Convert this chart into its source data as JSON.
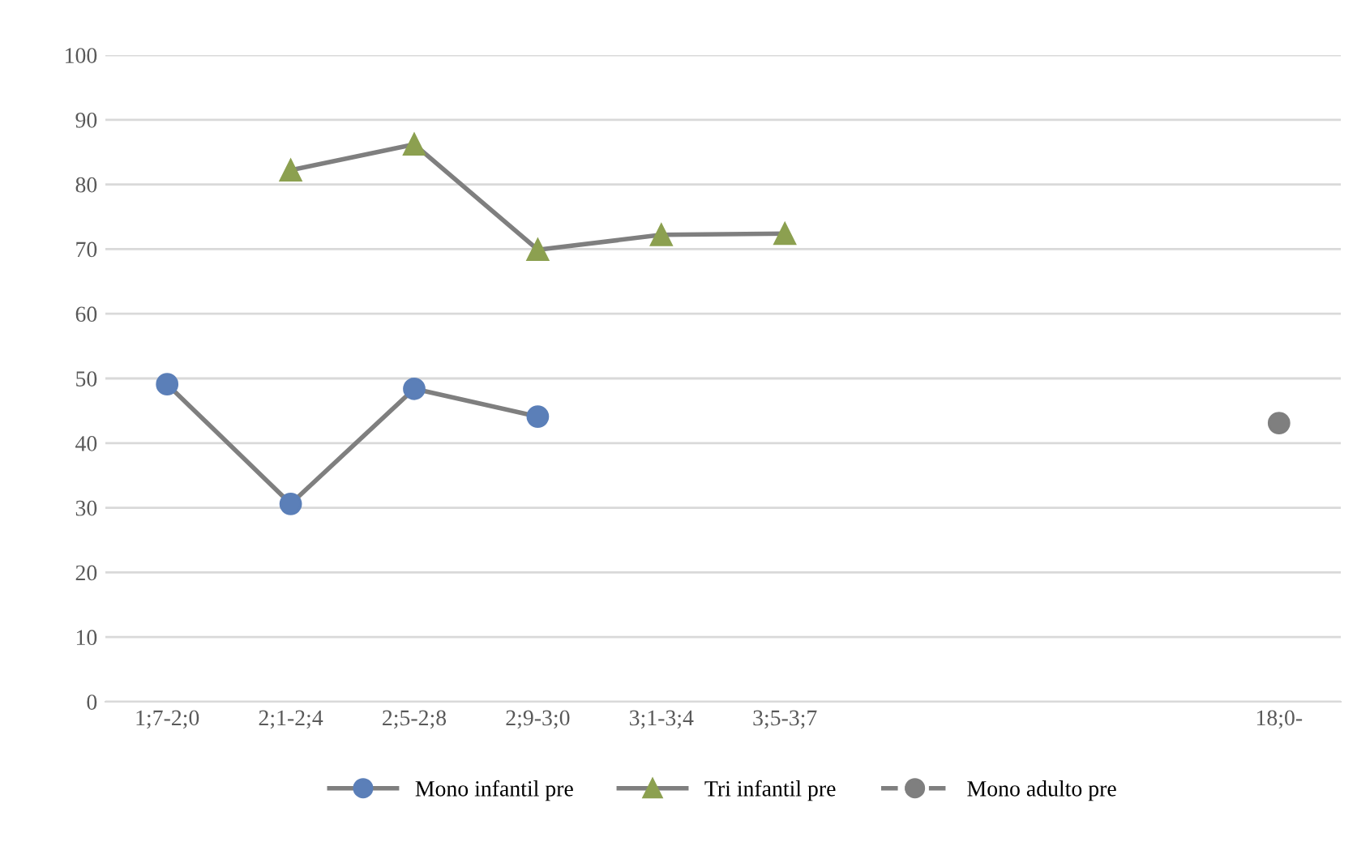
{
  "chart_data": {
    "type": "line",
    "categories": [
      "1;7-2;0",
      "2;1-2;4",
      "2;5-2;8",
      "2;9-3;0",
      "3;1-3;4",
      "3;5-3;7",
      null,
      null,
      null,
      "18;0-"
    ],
    "series": [
      {
        "name": "Mono infantil pre",
        "color": "#5b7fb8",
        "marker": "circle",
        "line_style": "solid",
        "values": [
          49.1,
          30.6,
          48.4,
          44.1,
          null,
          null,
          null,
          null,
          null,
          null
        ]
      },
      {
        "name": "Tri infantil pre",
        "color": "#8ca050",
        "marker": "triangle",
        "line_style": "solid",
        "values": [
          null,
          82.2,
          86.2,
          69.9,
          72.2,
          72.4,
          null,
          null,
          null,
          null
        ]
      },
      {
        "name": "Mono adulto pre",
        "color": "#7f7f7f",
        "marker": "circle",
        "line_style": "dashed",
        "values": [
          null,
          null,
          null,
          null,
          null,
          null,
          null,
          null,
          null,
          43.1
        ]
      }
    ],
    "ylim": [
      0,
      100
    ],
    "yticks": [
      0,
      10,
      20,
      30,
      40,
      50,
      60,
      70,
      80,
      90,
      100
    ],
    "grid": "y",
    "legend": "bottom"
  }
}
